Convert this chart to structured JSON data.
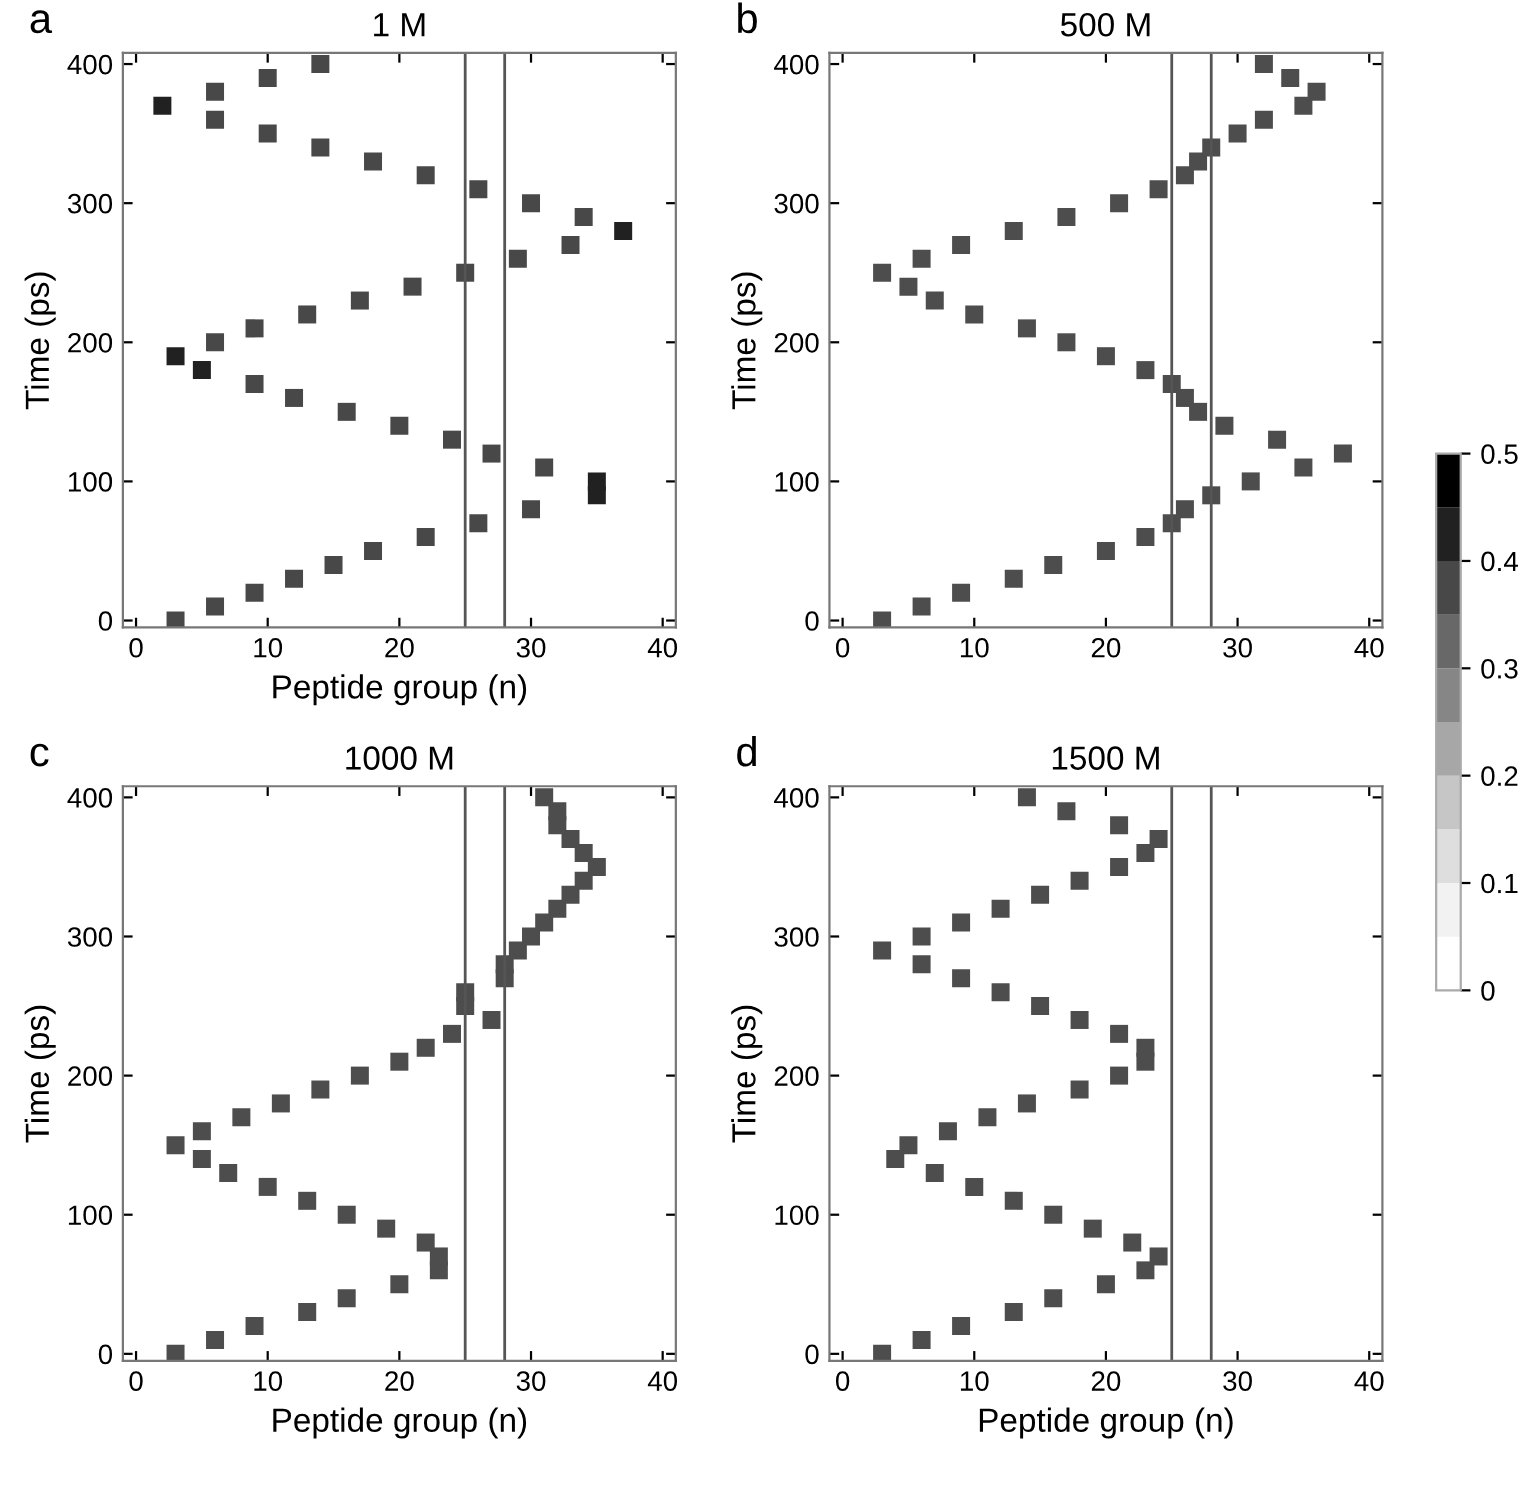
{
  "chart_data": [
    {
      "type": "scatter",
      "title": "1 M",
      "xlabel": "Peptide group (n)",
      "ylabel": "Time (ps)",
      "annotations": [
        "a"
      ],
      "marker": "square",
      "grid": false,
      "legend": false,
      "xlim": [
        -1,
        41
      ],
      "xticks": [
        0,
        10,
        20,
        30,
        40
      ],
      "ylim": [
        -5,
        408
      ],
      "yticks": [
        0,
        100,
        200,
        300,
        400
      ],
      "clim": [
        0,
        0.5
      ],
      "cticks": [
        0,
        0.1,
        0.2,
        0.3,
        0.4,
        0.5
      ],
      "ref_lines": [
        {
          "axis": "x",
          "value": 25,
          "color": "#555555"
        },
        {
          "axis": "x",
          "value": 28,
          "color": "#555555"
        }
      ],
      "series": [
        {
          "x": [
            3,
            6,
            9,
            12,
            15,
            18,
            22,
            26,
            30,
            35,
            35,
            31,
            27,
            24,
            20,
            16,
            12,
            9,
            5,
            3,
            6,
            9,
            13,
            17,
            21,
            25,
            29,
            33,
            37,
            34,
            30,
            26,
            22,
            18,
            14,
            10,
            6,
            2,
            6,
            10,
            14
          ],
          "values": [
            0,
            10,
            20,
            30,
            40,
            50,
            60,
            70,
            80,
            90,
            100,
            110,
            120,
            130,
            140,
            150,
            160,
            170,
            180,
            190,
            200,
            210,
            220,
            230,
            240,
            250,
            260,
            270,
            280,
            290,
            300,
            310,
            320,
            330,
            340,
            350,
            360,
            370,
            380,
            390,
            400
          ],
          "cvalues": [
            0.35,
            0.35,
            0.35,
            0.35,
            0.35,
            0.35,
            0.35,
            0.35,
            0.35,
            0.4,
            0.4,
            0.35,
            0.35,
            0.35,
            0.35,
            0.35,
            0.35,
            0.35,
            0.4,
            0.4,
            0.35,
            0.35,
            0.35,
            0.35,
            0.35,
            0.35,
            0.35,
            0.35,
            0.4,
            0.35,
            0.35,
            0.35,
            0.35,
            0.35,
            0.35,
            0.35,
            0.35,
            0.4,
            0.35,
            0.35,
            0.35
          ]
        }
      ]
    },
    {
      "type": "scatter",
      "title": "500 M",
      "ylabel": "Time (ps)",
      "annotations": [
        "b"
      ],
      "marker": "square",
      "grid": false,
      "legend": false,
      "xlim": [
        -1,
        41
      ],
      "xticks": [
        0,
        10,
        20,
        30,
        40
      ],
      "ylim": [
        -5,
        408
      ],
      "yticks": [
        0,
        100,
        200,
        300,
        400
      ],
      "ref_lines": [
        {
          "axis": "x",
          "value": 25,
          "color": "#555555"
        },
        {
          "axis": "x",
          "value": 28,
          "color": "#555555"
        }
      ],
      "series": [
        {
          "x": [
            3,
            6,
            9,
            13,
            16,
            20,
            23,
            25,
            26,
            28,
            31,
            35,
            38,
            33,
            29,
            27,
            26,
            25,
            23,
            20,
            17,
            14,
            10,
            7,
            5,
            3,
            6,
            9,
            13,
            17,
            21,
            24,
            26,
            27,
            28,
            30,
            32,
            35,
            36,
            34,
            32
          ],
          "values": [
            0,
            10,
            20,
            30,
            40,
            50,
            60,
            70,
            80,
            90,
            100,
            110,
            120,
            130,
            140,
            150,
            160,
            170,
            180,
            190,
            200,
            210,
            220,
            230,
            240,
            250,
            260,
            270,
            280,
            290,
            300,
            310,
            320,
            330,
            340,
            350,
            360,
            370,
            380,
            390,
            400
          ],
          "color": "#4d4d4d"
        }
      ]
    },
    {
      "type": "scatter",
      "title": "1000 M",
      "xlabel": "Peptide group (n)",
      "ylabel": "Time (ps)",
      "annotations": [
        "c"
      ],
      "marker": "square",
      "grid": false,
      "legend": false,
      "xlim": [
        -1,
        41
      ],
      "xticks": [
        0,
        10,
        20,
        30,
        40
      ],
      "ylim": [
        -5,
        408
      ],
      "yticks": [
        0,
        100,
        200,
        300,
        400
      ],
      "ref_lines": [
        {
          "axis": "x",
          "value": 25,
          "color": "#555555"
        },
        {
          "axis": "x",
          "value": 28,
          "color": "#555555"
        }
      ],
      "series": [
        {
          "x": [
            3,
            6,
            9,
            13,
            16,
            20,
            23,
            23,
            22,
            19,
            16,
            13,
            10,
            7,
            5,
            3,
            5,
            8,
            11,
            14,
            17,
            20,
            22,
            24,
            27,
            25,
            25,
            28,
            28,
            29,
            30,
            31,
            32,
            33,
            34,
            35,
            34,
            33,
            32,
            32,
            31
          ],
          "values": [
            0,
            10,
            20,
            30,
            40,
            50,
            60,
            70,
            80,
            90,
            100,
            110,
            120,
            130,
            140,
            150,
            160,
            170,
            180,
            190,
            200,
            210,
            220,
            230,
            240,
            250,
            260,
            270,
            280,
            290,
            300,
            310,
            320,
            330,
            340,
            350,
            360,
            370,
            380,
            390,
            400
          ],
          "color": "#4d4d4d"
        }
      ]
    },
    {
      "type": "scatter",
      "title": "1500 M",
      "xlabel": "Peptide group (n)",
      "ylabel": "Time (ps)",
      "annotations": [
        "d"
      ],
      "marker": "square",
      "grid": false,
      "legend": false,
      "xlim": [
        -1,
        41
      ],
      "xticks": [
        0,
        10,
        20,
        30,
        40
      ],
      "ylim": [
        -5,
        408
      ],
      "yticks": [
        0,
        100,
        200,
        300,
        400
      ],
      "ref_lines": [
        {
          "axis": "x",
          "value": 25,
          "color": "#555555"
        },
        {
          "axis": "x",
          "value": 28,
          "color": "#555555"
        }
      ],
      "series": [
        {
          "x": [
            3,
            6,
            9,
            13,
            16,
            20,
            23,
            24,
            22,
            19,
            16,
            13,
            10,
            7,
            4,
            5,
            8,
            11,
            14,
            18,
            21,
            23,
            23,
            21,
            18,
            15,
            12,
            9,
            6,
            3,
            6,
            9,
            12,
            15,
            18,
            21,
            23,
            24,
            21,
            17,
            14
          ],
          "values": [
            0,
            10,
            20,
            30,
            40,
            50,
            60,
            70,
            80,
            90,
            100,
            110,
            120,
            130,
            140,
            150,
            160,
            170,
            180,
            190,
            200,
            210,
            220,
            230,
            240,
            250,
            260,
            270,
            280,
            290,
            300,
            310,
            320,
            330,
            340,
            350,
            360,
            370,
            380,
            390,
            400
          ],
          "color": "#4d4d4d"
        }
      ]
    }
  ]
}
